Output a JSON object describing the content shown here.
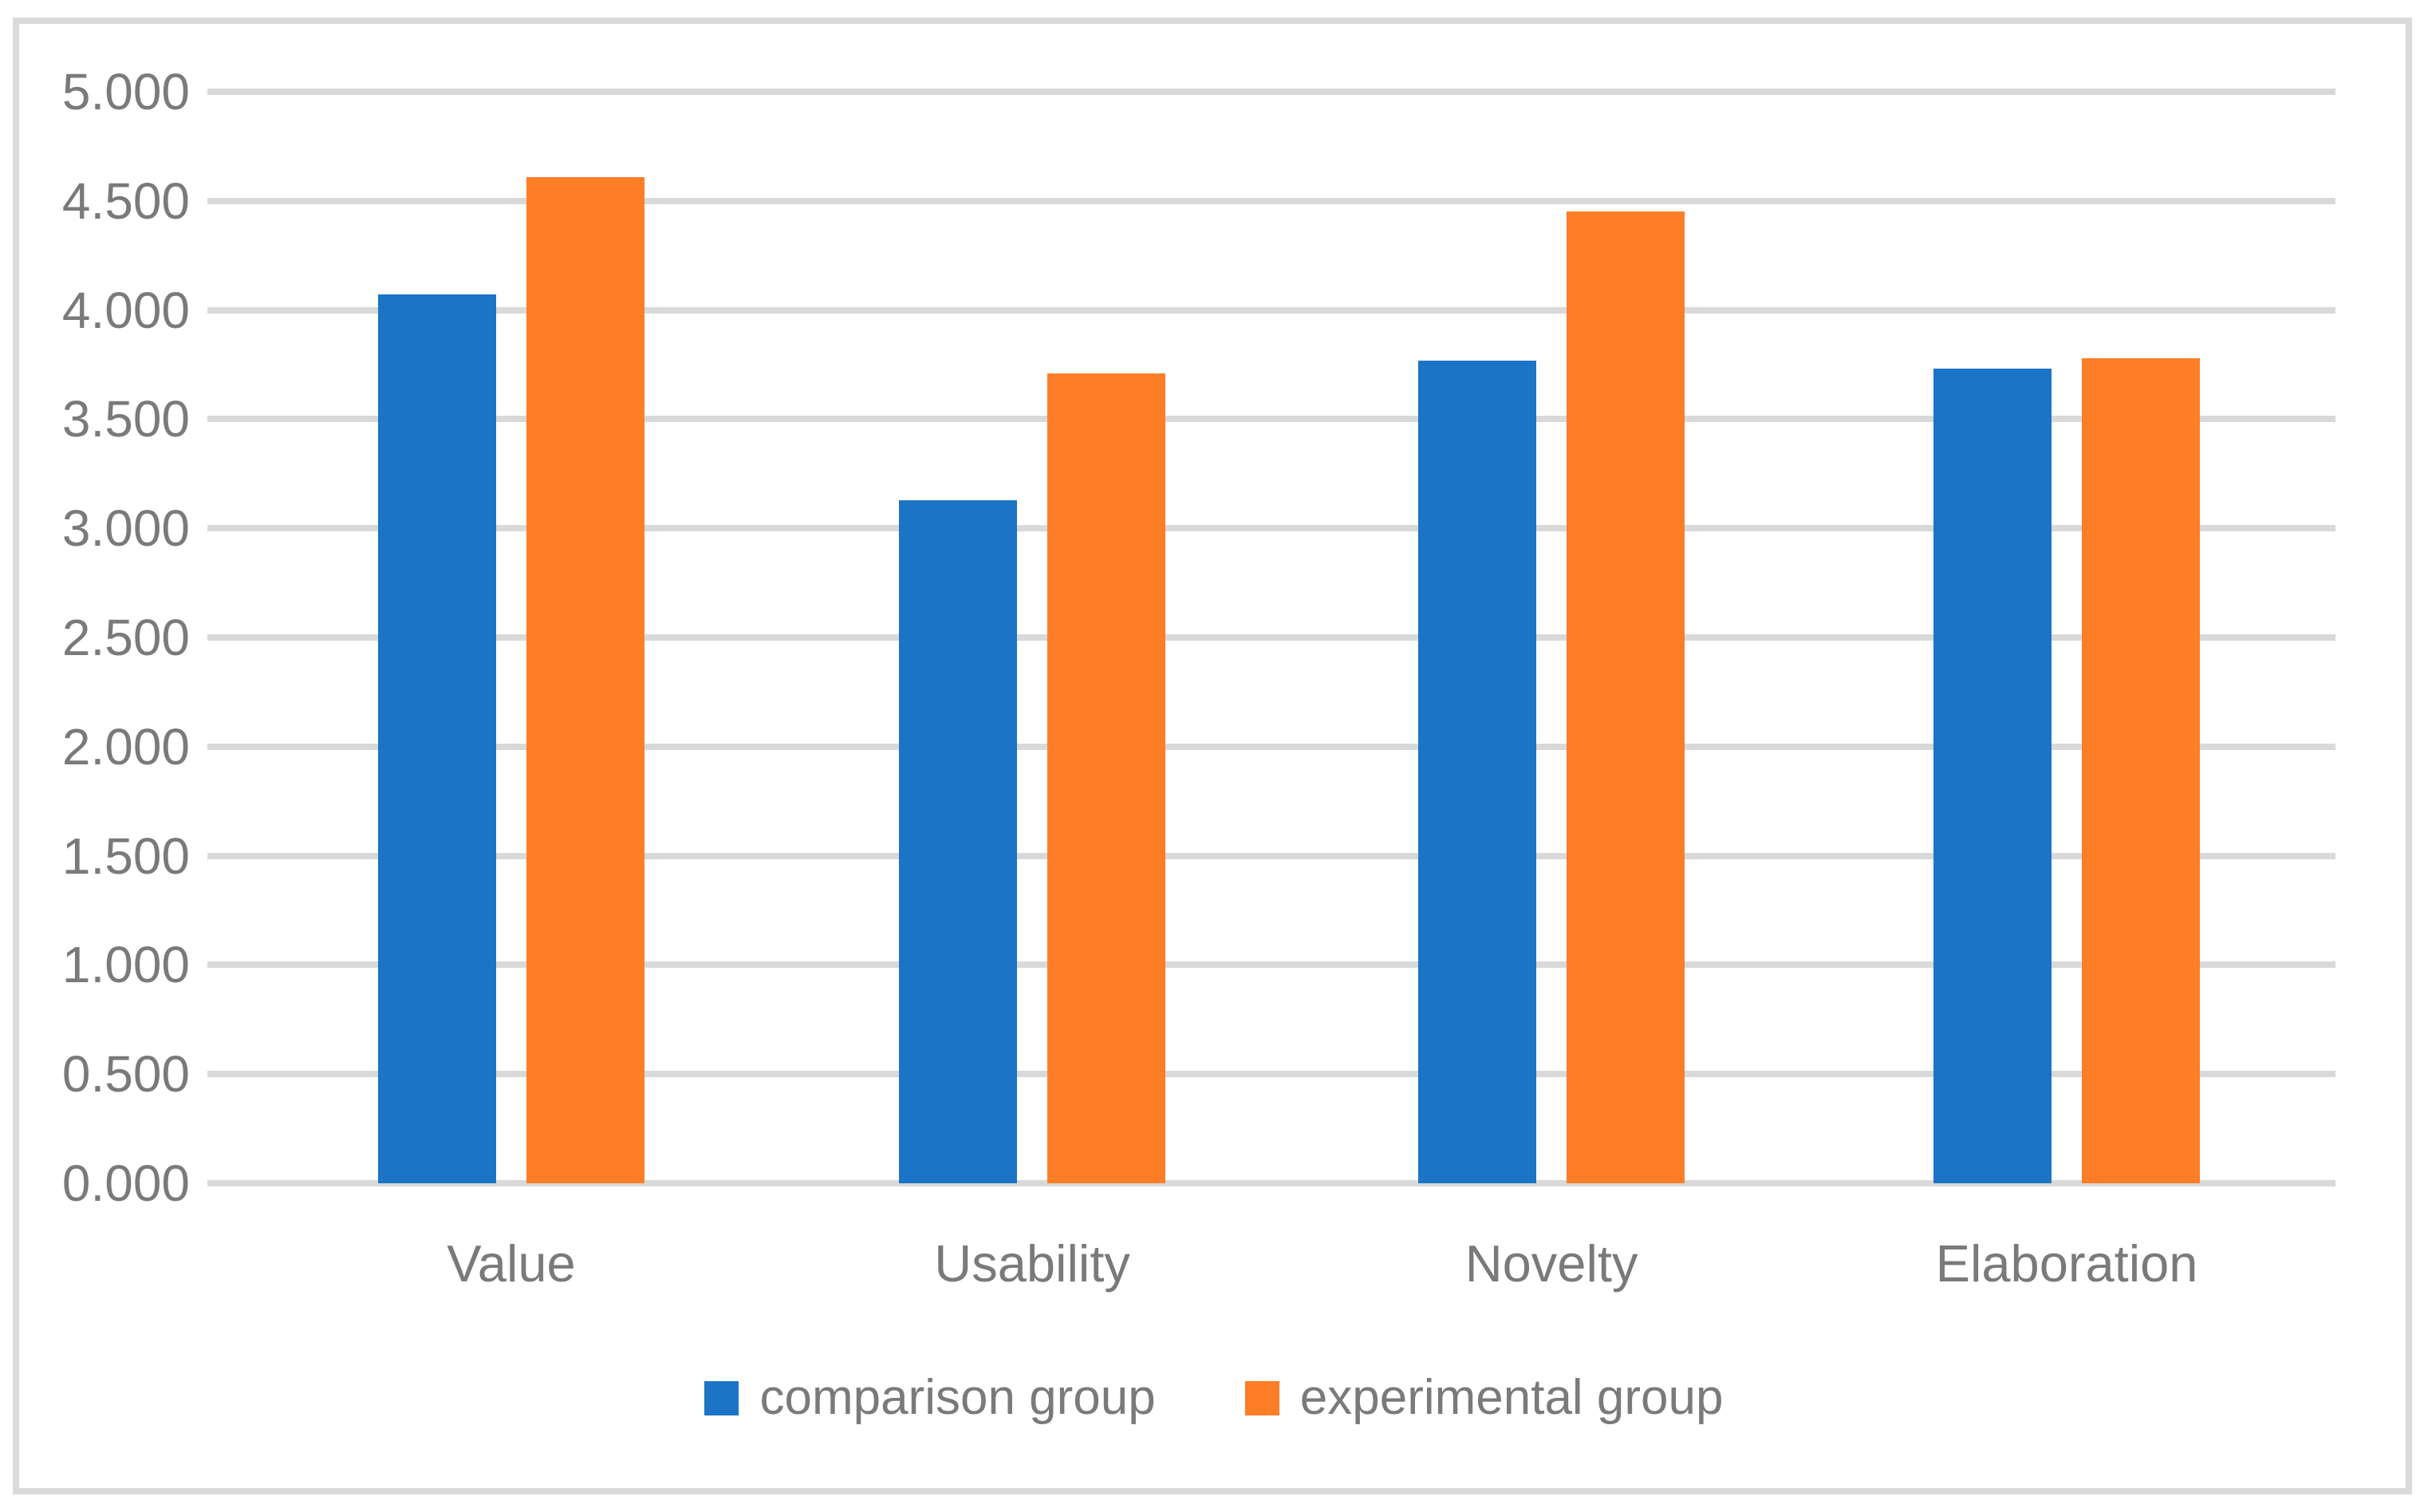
{
  "chart_data": {
    "type": "bar",
    "title": "",
    "xlabel": "",
    "ylabel": "",
    "categories": [
      "Value",
      "Usability",
      "Novelty",
      "Elaboration"
    ],
    "series": [
      {
        "name": "comparison group",
        "color": "#1b74c5",
        "values": [
          4.07,
          3.13,
          3.77,
          3.73
        ]
      },
      {
        "name": "experimental group",
        "color": "#fd7e26",
        "values": [
          4.61,
          3.71,
          4.45,
          3.78
        ]
      }
    ],
    "ylim": [
      0,
      5
    ],
    "ytick_step": 0.5,
    "yticks": [
      0,
      0.5,
      1,
      1.5,
      2,
      2.5,
      3,
      3.5,
      4,
      4.5,
      5
    ],
    "yticklabels": [
      "0.000",
      "0.500",
      "1.000",
      "1.500",
      "2.000",
      "2.500",
      "3.000",
      "3.500",
      "4.000",
      "4.500",
      "5.000"
    ],
    "grid": "horizontal",
    "gridline_color": "#d9d9d9",
    "border_color": "#dadada",
    "text_color": "#7a7a7a",
    "legend_position": "bottom",
    "legend": [
      "comparison group",
      "experimental group"
    ]
  }
}
